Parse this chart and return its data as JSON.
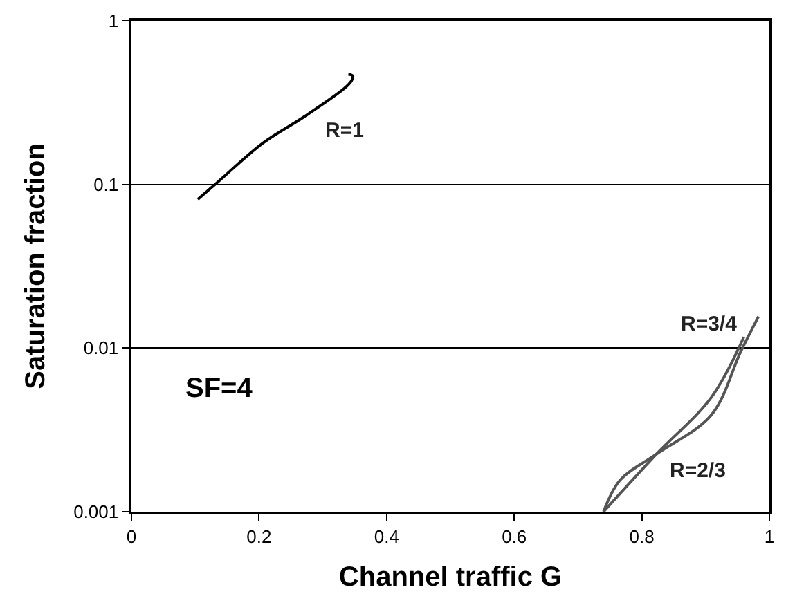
{
  "chart_data": {
    "type": "line",
    "xlabel": "Channel traffic G",
    "ylabel": "Saturation fraction",
    "log": "y",
    "grid": "y",
    "legend": false,
    "xlim": [
      0,
      1
    ],
    "xticks": [
      0,
      0.2,
      0.4,
      0.6,
      0.8,
      1
    ],
    "ylim": [
      0.001,
      1
    ],
    "yticks": [
      0.001,
      0.01,
      0.1,
      1
    ],
    "series": [
      {
        "name": "R=1",
        "color": "#000000",
        "x": [
          0.104,
          0.136,
          0.206,
          0.27,
          0.334,
          0.345,
          0.347,
          0.34
        ],
        "values": [
          0.081,
          0.104,
          0.179,
          0.258,
          0.387,
          0.43,
          0.46,
          0.47
        ]
      },
      {
        "name": "R=3/4",
        "color": "#555555",
        "x": [
          0.74,
          0.766,
          0.823,
          0.909,
          0.955,
          0.983
        ],
        "values": [
          0.001,
          0.00156,
          0.00225,
          0.0039,
          0.0095,
          0.0156
        ]
      },
      {
        "name": "R=2/3",
        "color": "#555555",
        "x": [
          0.74,
          0.823,
          0.909,
          0.96
        ],
        "values": [
          0.001,
          0.00225,
          0.005,
          0.0117
        ]
      }
    ],
    "annotations": [
      "SF=4"
    ]
  }
}
